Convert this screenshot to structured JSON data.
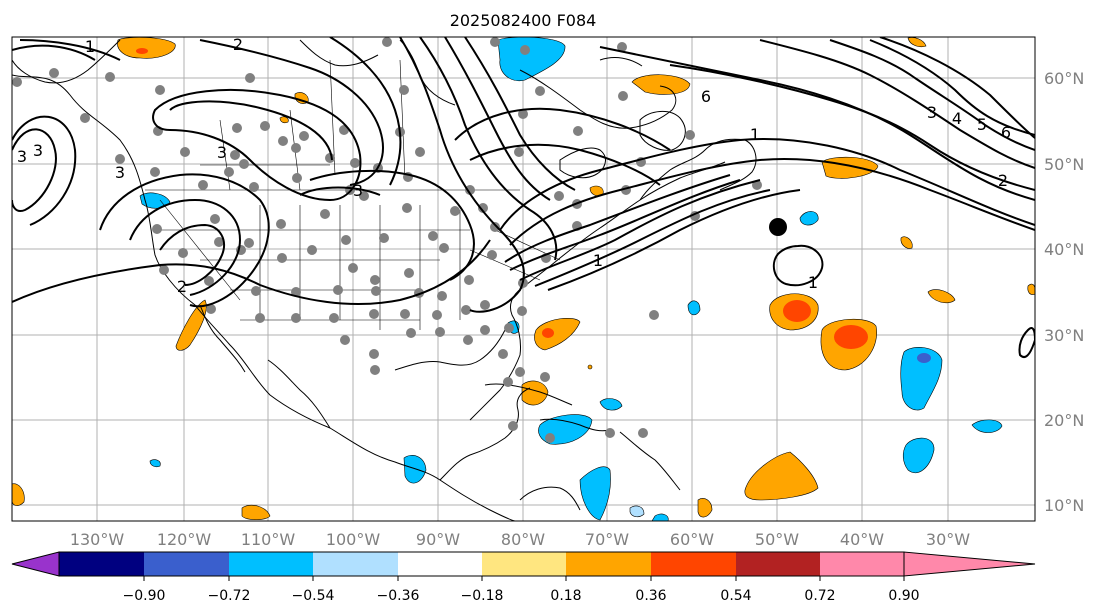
{
  "title": "2025082400 F084",
  "map": {
    "lon_labels": [
      "130°W",
      "120°W",
      "110°W",
      "100°W",
      "90°W",
      "80°W",
      "70°W",
      "60°W",
      "50°W",
      "40°W",
      "30°W"
    ],
    "lat_labels": [
      "60°N",
      "50°N",
      "40°N",
      "30°N",
      "20°N",
      "10°N"
    ],
    "contour_labels": [
      "2",
      "3",
      "3",
      "3",
      "3",
      "6",
      "3",
      "4",
      "5",
      "6",
      "2",
      "1",
      "1",
      "1",
      "3",
      "2",
      "1"
    ]
  },
  "colorbar": {
    "tick_labels": [
      "−0.90",
      "−0.72",
      "−0.54",
      "−0.36",
      "−0.18",
      "0.18",
      "0.36",
      "0.54",
      "0.72",
      "0.90"
    ],
    "colors": [
      "#9933cc",
      "#000080",
      "#3a5fcd",
      "#00bfff",
      "#b0e0ff",
      "#ffffff",
      "#ffe680",
      "#ffa500",
      "#ff4500",
      "#b22222",
      "#ff88aa"
    ]
  },
  "colors": {
    "station_dot": "#808080",
    "marker_dot": "#000000",
    "grid": "#b0b0b0"
  }
}
